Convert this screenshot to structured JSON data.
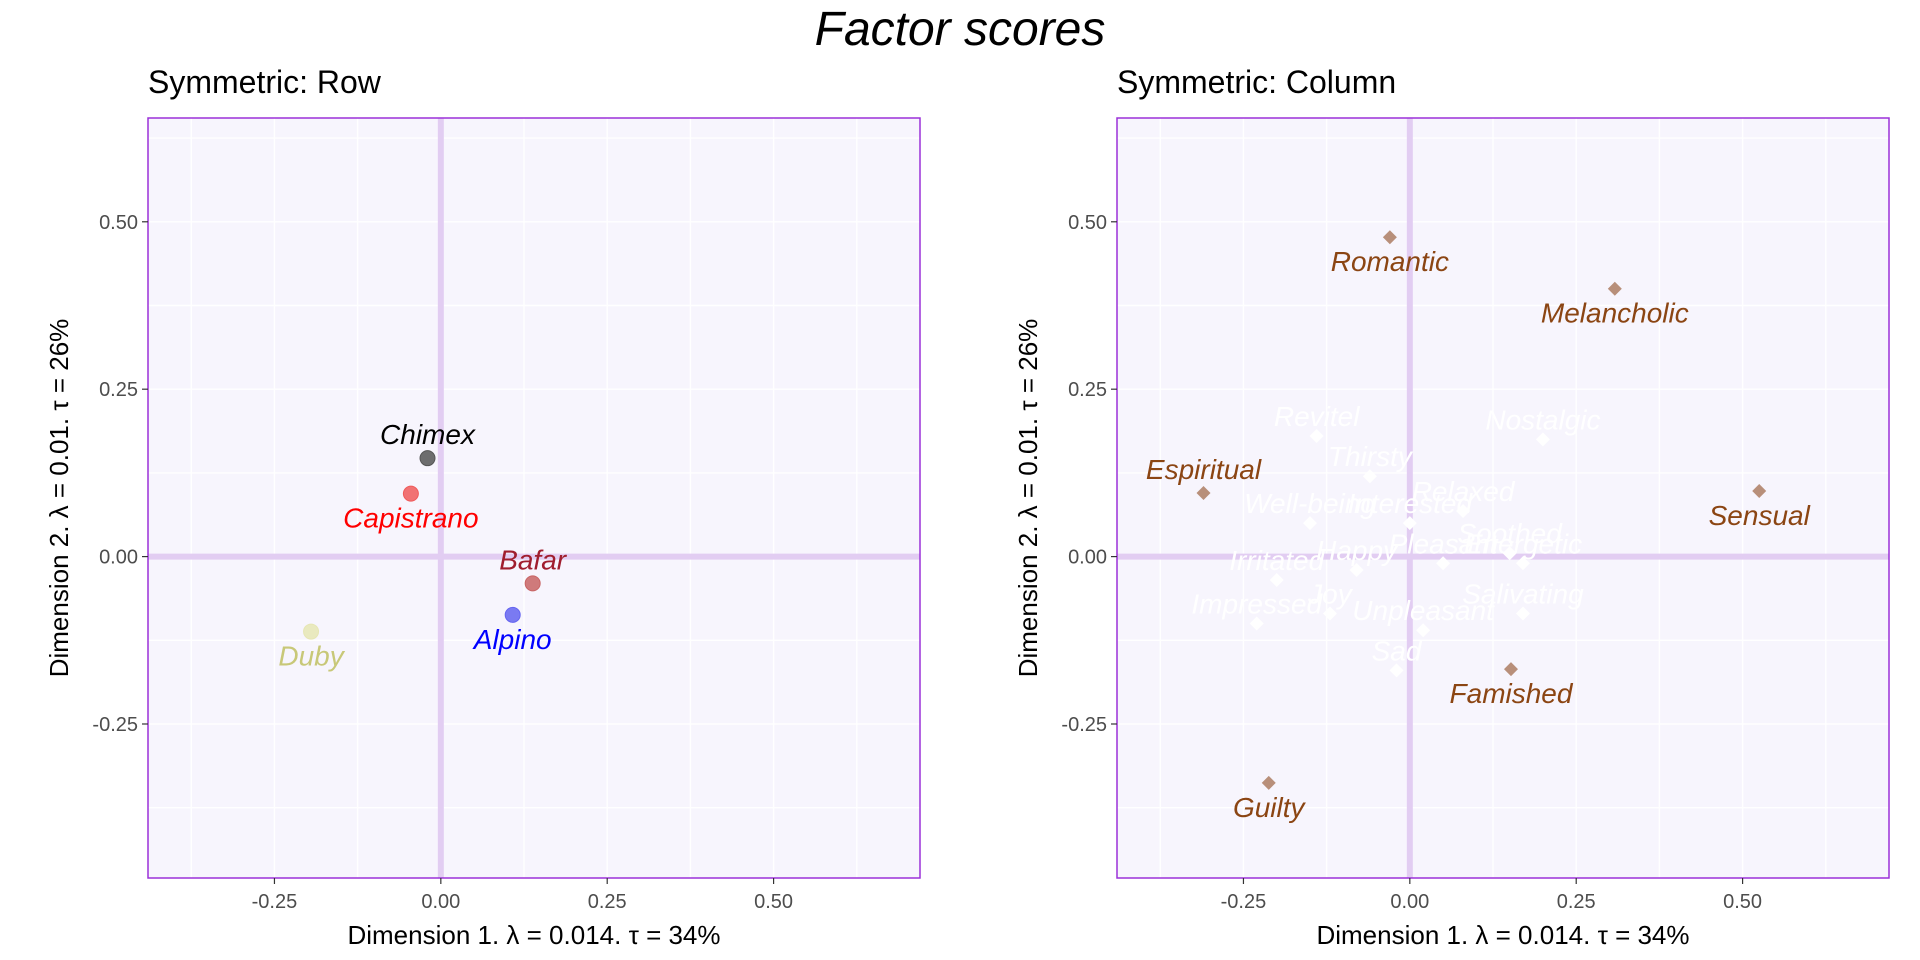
{
  "title": "Factor scores",
  "colors": {
    "panel_bg": "#f7f5fd",
    "panel_border": "#9b30d9",
    "zero_line": "#e2cdf2",
    "grid": "#ffffff",
    "column_marker": "#b88f7a",
    "column_label": "#8b4513",
    "hidden_label": "#ffffff"
  },
  "chart_data": [
    {
      "type": "scatter",
      "title": "Symmetric: Row",
      "xlabel": "Dimension 1.   λ = 0.014.  τ = 34%",
      "ylabel": "Dimension 2.   λ = 0.01.  τ = 26%",
      "xlim": [
        -0.44,
        0.72
      ],
      "ylim": [
        -0.48,
        0.655
      ],
      "xticks": [
        -0.25,
        0.0,
        0.25,
        0.5
      ],
      "yticks": [
        -0.25,
        0.0,
        0.25,
        0.5
      ],
      "xtick_labels": [
        "-0.25",
        "0.00",
        "0.25",
        "0.50"
      ],
      "ytick_labels": [
        "-0.25",
        "0.00",
        "0.25",
        "0.50"
      ],
      "grid": true,
      "marker": "circle",
      "points": [
        {
          "name": "Chimex",
          "x": -0.02,
          "y": 0.147,
          "color": "#555555",
          "label_color": "#000000",
          "label_pos": "above"
        },
        {
          "name": "Capistrano",
          "x": -0.045,
          "y": 0.094,
          "color": "#f05a5a",
          "label_color": "#ff0000",
          "label_pos": "below"
        },
        {
          "name": "Bafar",
          "x": 0.138,
          "y": -0.04,
          "color": "#c86464",
          "label_color": "#a01e2e",
          "label_pos": "above"
        },
        {
          "name": "Alpino",
          "x": 0.108,
          "y": -0.087,
          "color": "#6464f0",
          "label_color": "#0000ff",
          "label_pos": "below"
        },
        {
          "name": "Duby",
          "x": -0.195,
          "y": -0.112,
          "color": "#e6e6b4",
          "label_color": "#c8c878",
          "label_pos": "below"
        }
      ]
    },
    {
      "type": "scatter",
      "title": "Symmetric: Column",
      "xlabel": "Dimension 1.   λ = 0.014.  τ = 34%",
      "ylabel": "Dimension 2.   λ = 0.01.  τ = 26%",
      "xlim": [
        -0.44,
        0.72
      ],
      "ylim": [
        -0.48,
        0.655
      ],
      "xticks": [
        -0.25,
        0.0,
        0.25,
        0.5
      ],
      "yticks": [
        -0.25,
        0.0,
        0.25,
        0.5
      ],
      "xtick_labels": [
        "-0.25",
        "0.00",
        "0.25",
        "0.50"
      ],
      "ytick_labels": [
        "-0.25",
        "0.00",
        "0.25",
        "0.50"
      ],
      "grid": true,
      "marker": "diamond",
      "points": [
        {
          "name": "Romantic",
          "x": -0.03,
          "y": 0.477,
          "visible": true,
          "label_pos": "below"
        },
        {
          "name": "Melancholic",
          "x": 0.308,
          "y": 0.4,
          "visible": true,
          "label_pos": "below"
        },
        {
          "name": "Espiritual",
          "x": -0.31,
          "y": 0.095,
          "visible": true,
          "label_pos": "above"
        },
        {
          "name": "Sensual",
          "x": 0.525,
          "y": 0.098,
          "visible": true,
          "label_pos": "below"
        },
        {
          "name": "Famished",
          "x": 0.152,
          "y": -0.168,
          "visible": true,
          "label_pos": "below"
        },
        {
          "name": "Guilty",
          "x": -0.212,
          "y": -0.338,
          "visible": true,
          "label_pos": "below"
        },
        {
          "name": "Revitel",
          "x": -0.14,
          "y": 0.18,
          "visible": false
        },
        {
          "name": "Nostalgic",
          "x": 0.2,
          "y": 0.175,
          "visible": false
        },
        {
          "name": "Thirsty",
          "x": -0.06,
          "y": 0.12,
          "visible": false
        },
        {
          "name": "Relaxed",
          "x": 0.08,
          "y": 0.068,
          "visible": false
        },
        {
          "name": "Well-being",
          "x": -0.15,
          "y": 0.05,
          "visible": false
        },
        {
          "name": "Interested",
          "x": 0.0,
          "y": 0.05,
          "visible": false
        },
        {
          "name": "Soothed",
          "x": 0.15,
          "y": 0.005,
          "visible": false
        },
        {
          "name": "Happy",
          "x": -0.08,
          "y": -0.02,
          "visible": false
        },
        {
          "name": "Irritated",
          "x": -0.2,
          "y": -0.035,
          "visible": false
        },
        {
          "name": "Pleasant",
          "x": 0.05,
          "y": -0.01,
          "visible": false
        },
        {
          "name": "Energetic",
          "x": 0.17,
          "y": -0.01,
          "visible": false
        },
        {
          "name": "Joy",
          "x": -0.12,
          "y": -0.085,
          "visible": false
        },
        {
          "name": "Salivating",
          "x": 0.17,
          "y": -0.085,
          "visible": false
        },
        {
          "name": "Impressed",
          "x": -0.23,
          "y": -0.1,
          "visible": false
        },
        {
          "name": "Unpleasant",
          "x": 0.02,
          "y": -0.11,
          "visible": false
        },
        {
          "name": "Sad",
          "x": -0.02,
          "y": -0.17,
          "visible": false
        }
      ]
    }
  ]
}
